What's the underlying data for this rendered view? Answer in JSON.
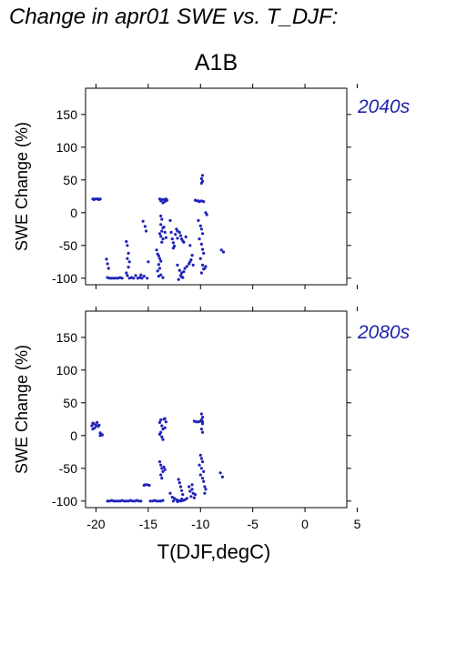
{
  "title": "Change in apr01 SWE vs. T_DJF:",
  "scenario": "A1B",
  "xlabel": "T(DJF,degC)",
  "ylabel": "SWE Change (%)",
  "colors": {
    "points": "#1f23b8",
    "period_label": "#1f23a8",
    "axis": "#000000"
  },
  "chart_data": [
    {
      "type": "scatter",
      "panel_label": "2040s",
      "xlim": [
        -21,
        4
      ],
      "ylim": [
        -110,
        190
      ],
      "xticks": [
        -20,
        -15,
        -10,
        -5,
        0,
        5
      ],
      "yticks": [
        -100,
        -50,
        0,
        50,
        100,
        150
      ],
      "show_xtick_labels": false,
      "grid": false,
      "points": [
        [
          -20.3,
          21
        ],
        [
          -20.1,
          21
        ],
        [
          -19.9,
          21
        ],
        [
          -19.7,
          20
        ],
        [
          -19.6,
          21
        ],
        [
          -20.2,
          20
        ],
        [
          -19.8,
          21
        ],
        [
          -19.0,
          -71
        ],
        [
          -18.9,
          -78
        ],
        [
          -18.8,
          -85
        ],
        [
          -18.9,
          -99
        ],
        [
          -18.7,
          -100
        ],
        [
          -18.5,
          -100
        ],
        [
          -18.3,
          -100
        ],
        [
          -18.1,
          -100
        ],
        [
          -17.9,
          -100
        ],
        [
          -17.7,
          -99
        ],
        [
          -17.5,
          -100
        ],
        [
          -17.1,
          -44
        ],
        [
          -17.0,
          -50
        ],
        [
          -16.9,
          -62
        ],
        [
          -17.0,
          -70
        ],
        [
          -16.8,
          -75
        ],
        [
          -16.9,
          -83
        ],
        [
          -17.1,
          -92
        ],
        [
          -17.0,
          -96
        ],
        [
          -16.8,
          -100
        ],
        [
          -16.6,
          -99
        ],
        [
          -16.4,
          -100
        ],
        [
          -16.2,
          -96
        ],
        [
          -16.0,
          -100
        ],
        [
          -15.8,
          -99
        ],
        [
          -15.6,
          -100
        ],
        [
          -15.4,
          -97
        ],
        [
          -15.7,
          -95
        ],
        [
          -15.5,
          -13
        ],
        [
          -15.3,
          -21
        ],
        [
          -15.2,
          -28
        ],
        [
          -15.0,
          -75
        ],
        [
          -15.1,
          -100
        ],
        [
          -14.2,
          -57
        ],
        [
          -14.1,
          -63
        ],
        [
          -14.0,
          -66
        ],
        [
          -13.9,
          -70
        ],
        [
          -13.8,
          -74
        ],
        [
          -14.0,
          -79
        ],
        [
          -13.9,
          -85
        ],
        [
          -14.1,
          -89
        ],
        [
          -13.8,
          -95
        ],
        [
          -13.6,
          -99
        ],
        [
          -14.0,
          -97
        ],
        [
          -13.9,
          21
        ],
        [
          -13.8,
          18
        ],
        [
          -13.7,
          20
        ],
        [
          -13.6,
          15
        ],
        [
          -13.5,
          20
        ],
        [
          -13.4,
          17
        ],
        [
          -13.3,
          21
        ],
        [
          -13.2,
          19
        ],
        [
          -13.8,
          -5
        ],
        [
          -13.7,
          -10
        ],
        [
          -13.8,
          -18
        ],
        [
          -13.6,
          -23
        ],
        [
          -13.7,
          -28
        ],
        [
          -13.9,
          -32
        ],
        [
          -13.8,
          -36
        ],
        [
          -13.6,
          -40
        ],
        [
          -13.7,
          -45
        ],
        [
          -13.5,
          -22
        ],
        [
          -13.4,
          -30
        ],
        [
          -13.3,
          -38
        ],
        [
          -12.9,
          -12
        ],
        [
          -12.8,
          -30
        ],
        [
          -12.7,
          -40
        ],
        [
          -12.6,
          -46
        ],
        [
          -12.5,
          -51
        ],
        [
          -12.4,
          -33
        ],
        [
          -12.2,
          -39
        ],
        [
          -12.6,
          -54
        ],
        [
          -12.3,
          -25
        ],
        [
          -12.2,
          -28
        ],
        [
          -12.0,
          -30
        ],
        [
          -11.9,
          -35
        ],
        [
          -11.8,
          -40
        ],
        [
          -11.7,
          -43
        ],
        [
          -11.6,
          -45
        ],
        [
          -11.4,
          -37
        ],
        [
          -12.2,
          -80
        ],
        [
          -12.0,
          -88
        ],
        [
          -11.8,
          -92
        ],
        [
          -11.9,
          -96
        ],
        [
          -11.7,
          -99
        ],
        [
          -12.1,
          -102
        ],
        [
          -11.6,
          -90
        ],
        [
          -11.5,
          -85
        ],
        [
          -11.8,
          -98
        ],
        [
          -11.3,
          -82
        ],
        [
          -11.1,
          -78
        ],
        [
          -11.0,
          -75
        ],
        [
          -10.9,
          -72
        ],
        [
          -10.7,
          -80
        ],
        [
          -10.8,
          -65
        ],
        [
          -11.0,
          -50
        ],
        [
          -10.5,
          19
        ],
        [
          -10.3,
          18
        ],
        [
          -10.1,
          17
        ],
        [
          -9.9,
          18
        ],
        [
          -9.7,
          17
        ],
        [
          -10.2,
          18
        ],
        [
          -9.8,
          57
        ],
        [
          -9.9,
          52
        ],
        [
          -9.8,
          48
        ],
        [
          -9.9,
          45
        ],
        [
          -10.2,
          -12
        ],
        [
          -10.0,
          -20
        ],
        [
          -9.9,
          -25
        ],
        [
          -9.8,
          -32
        ],
        [
          -10.1,
          -40
        ],
        [
          -9.9,
          -48
        ],
        [
          -9.8,
          -56
        ],
        [
          -9.7,
          -62
        ],
        [
          -10.0,
          -70
        ],
        [
          -9.8,
          -80
        ],
        [
          -9.7,
          -86
        ],
        [
          -9.9,
          -92
        ],
        [
          -9.6,
          -85
        ],
        [
          -9.5,
          -82
        ],
        [
          -9.5,
          0
        ],
        [
          -9.4,
          -3
        ],
        [
          -8.0,
          -57
        ],
        [
          -7.8,
          -60
        ]
      ]
    },
    {
      "type": "scatter",
      "panel_label": "2080s",
      "xlim": [
        -21,
        4
      ],
      "ylim": [
        -110,
        190
      ],
      "xticks": [
        -20,
        -15,
        -10,
        -5,
        0,
        5
      ],
      "yticks": [
        -100,
        -50,
        0,
        50,
        100,
        150
      ],
      "show_xtick_labels": true,
      "grid": false,
      "points": [
        [
          -20.4,
          15
        ],
        [
          -20.3,
          19
        ],
        [
          -20.2,
          18
        ],
        [
          -20.1,
          12
        ],
        [
          -20.0,
          16
        ],
        [
          -19.9,
          20
        ],
        [
          -19.8,
          14
        ],
        [
          -19.7,
          16
        ],
        [
          -20.3,
          10
        ],
        [
          -19.6,
          4
        ],
        [
          -19.5,
          2
        ],
        [
          -19.4,
          1
        ],
        [
          -19.6,
          0
        ],
        [
          -18.9,
          -100
        ],
        [
          -18.7,
          -100
        ],
        [
          -18.5,
          -99
        ],
        [
          -18.3,
          -100
        ],
        [
          -18.1,
          -100
        ],
        [
          -17.9,
          -100
        ],
        [
          -17.7,
          -100
        ],
        [
          -17.5,
          -99
        ],
        [
          -17.3,
          -100
        ],
        [
          -17.1,
          -100
        ],
        [
          -16.9,
          -100
        ],
        [
          -16.7,
          -99
        ],
        [
          -16.5,
          -100
        ],
        [
          -16.3,
          -100
        ],
        [
          -16.1,
          -99
        ],
        [
          -15.9,
          -100
        ],
        [
          -15.7,
          -100
        ],
        [
          -15.4,
          -76
        ],
        [
          -15.3,
          -75
        ],
        [
          -15.1,
          -75
        ],
        [
          -14.9,
          -76
        ],
        [
          -14.8,
          -100
        ],
        [
          -14.6,
          -100
        ],
        [
          -14.4,
          -99
        ],
        [
          -14.2,
          -100
        ],
        [
          -14.0,
          -100
        ],
        [
          -13.8,
          -100
        ],
        [
          -13.6,
          -99
        ],
        [
          -13.9,
          20
        ],
        [
          -13.8,
          24
        ],
        [
          -13.7,
          15
        ],
        [
          -13.6,
          10
        ],
        [
          -13.8,
          5
        ],
        [
          -13.9,
          2
        ],
        [
          -13.7,
          -2
        ],
        [
          -13.6,
          -6
        ],
        [
          -13.5,
          25
        ],
        [
          -13.4,
          26
        ],
        [
          -13.3,
          21
        ],
        [
          -13.4,
          12
        ],
        [
          -13.9,
          -40
        ],
        [
          -13.8,
          -45
        ],
        [
          -13.7,
          -50
        ],
        [
          -13.6,
          -55
        ],
        [
          -13.8,
          -60
        ],
        [
          -13.7,
          -65
        ],
        [
          -13.5,
          -48
        ],
        [
          -13.4,
          -52
        ],
        [
          -12.9,
          -88
        ],
        [
          -12.7,
          -94
        ],
        [
          -12.5,
          -96
        ],
        [
          -12.3,
          -98
        ],
        [
          -12.1,
          -99
        ],
        [
          -11.9,
          -100
        ],
        [
          -11.7,
          -99
        ],
        [
          -11.5,
          -98
        ],
        [
          -11.3,
          -96
        ],
        [
          -12.6,
          -100
        ],
        [
          -12.2,
          -101
        ],
        [
          -11.8,
          -97
        ],
        [
          -12.1,
          -67
        ],
        [
          -12.0,
          -72
        ],
        [
          -11.9,
          -78
        ],
        [
          -11.8,
          -84
        ],
        [
          -11.7,
          -90
        ],
        [
          -11.0,
          -85
        ],
        [
          -10.8,
          -82
        ],
        [
          -10.7,
          -88
        ],
        [
          -10.9,
          -93
        ],
        [
          -10.6,
          -95
        ],
        [
          -10.5,
          -90
        ],
        [
          -11.1,
          -78
        ],
        [
          -10.8,
          -75
        ],
        [
          -10.6,
          22
        ],
        [
          -10.4,
          21
        ],
        [
          -10.2,
          21
        ],
        [
          -10.0,
          22
        ],
        [
          -9.8,
          21
        ],
        [
          -9.9,
          33
        ],
        [
          -9.8,
          28
        ],
        [
          -9.9,
          24
        ],
        [
          -9.8,
          18
        ],
        [
          -9.9,
          10
        ],
        [
          -9.8,
          5
        ],
        [
          -10.0,
          -30
        ],
        [
          -9.9,
          -35
        ],
        [
          -9.8,
          -40
        ],
        [
          -10.1,
          -45
        ],
        [
          -9.9,
          -50
        ],
        [
          -9.7,
          -55
        ],
        [
          -10.0,
          -60
        ],
        [
          -9.8,
          -65
        ],
        [
          -9.7,
          -70
        ],
        [
          -9.6,
          -78
        ],
        [
          -9.5,
          -82
        ],
        [
          -9.6,
          -88
        ],
        [
          -8.1,
          -57
        ],
        [
          -7.9,
          -63
        ]
      ]
    }
  ]
}
